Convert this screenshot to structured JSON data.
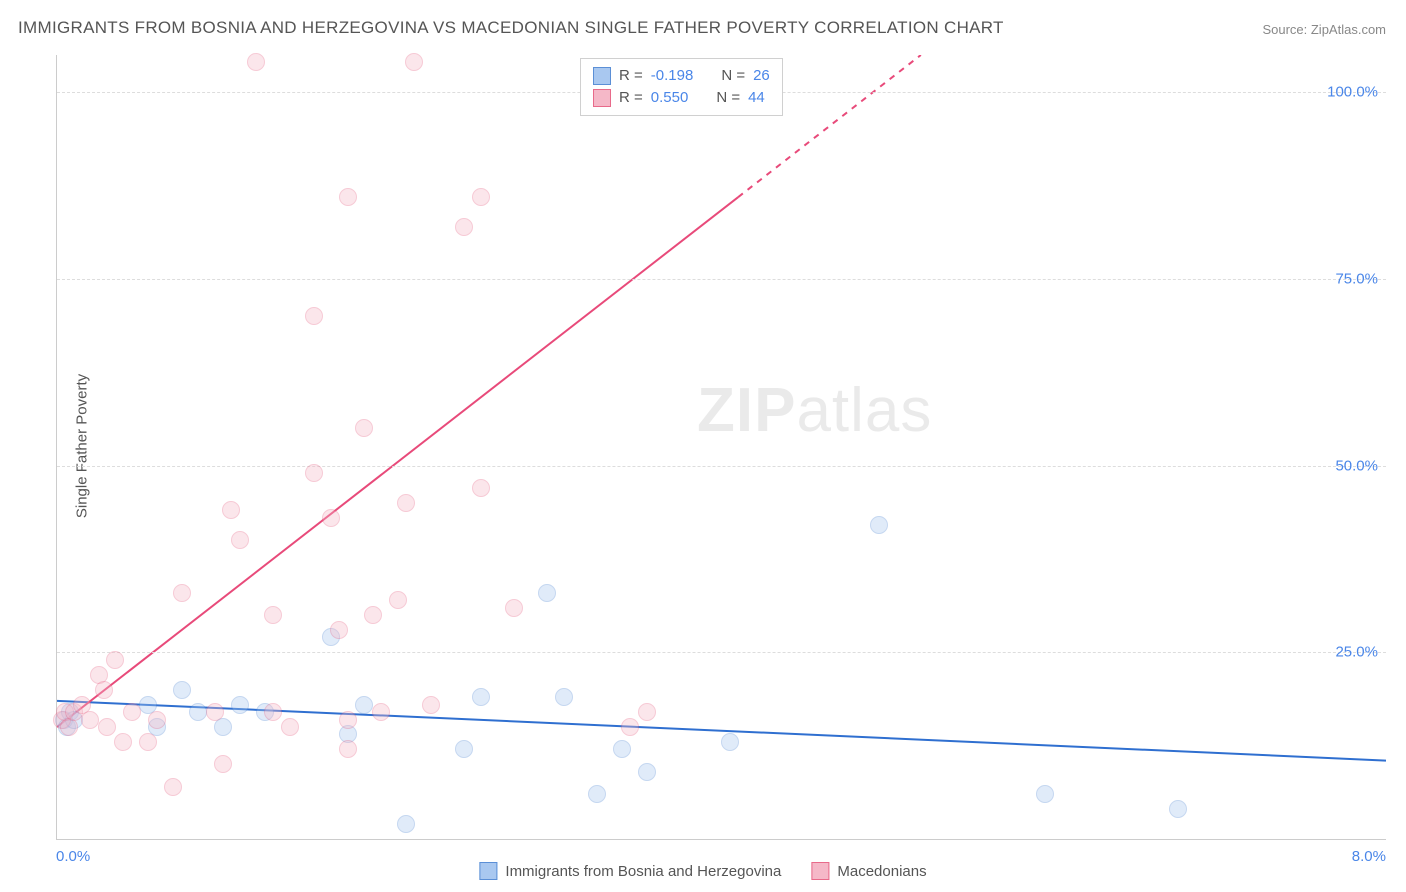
{
  "title": "IMMIGRANTS FROM BOSNIA AND HERZEGOVINA VS MACEDONIAN SINGLE FATHER POVERTY CORRELATION CHART",
  "source": "Source: ZipAtlas.com",
  "ylabel": "Single Father Poverty",
  "watermark": {
    "bold": "ZIP",
    "rest": "atlas"
  },
  "chart": {
    "type": "scatter",
    "xlim": [
      0,
      8
    ],
    "ylim": [
      0,
      105
    ],
    "xticks": [
      {
        "value": 0,
        "label": "0.0%"
      },
      {
        "value": 8,
        "label": "8.0%"
      }
    ],
    "yticks": [
      {
        "value": 25,
        "label": "25.0%"
      },
      {
        "value": 50,
        "label": "50.0%"
      },
      {
        "value": 75,
        "label": "75.0%"
      },
      {
        "value": 100,
        "label": "100.0%"
      }
    ],
    "grid_color": "#dddddd",
    "axis_color": "#cccccc",
    "background_color": "#ffffff",
    "marker_radius": 9,
    "marker_opacity": 0.35,
    "series": [
      {
        "name": "Immigrants from Bosnia and Herzegovina",
        "color_fill": "#a9c8f0",
        "color_stroke": "#5b8fd6",
        "R": "-0.198",
        "N": "26",
        "trend": {
          "x1": 0,
          "y1": 18.5,
          "x2": 8,
          "y2": 10.5,
          "color": "#2f6fd0",
          "width": 2,
          "dash_after_x": 8
        },
        "points": [
          {
            "x": 0.04,
            "y": 16
          },
          {
            "x": 0.06,
            "y": 15
          },
          {
            "x": 0.08,
            "y": 17
          },
          {
            "x": 0.1,
            "y": 16
          },
          {
            "x": 0.55,
            "y": 18
          },
          {
            "x": 0.6,
            "y": 15
          },
          {
            "x": 0.75,
            "y": 20
          },
          {
            "x": 0.85,
            "y": 17
          },
          {
            "x": 1.0,
            "y": 15
          },
          {
            "x": 1.1,
            "y": 18
          },
          {
            "x": 1.25,
            "y": 17
          },
          {
            "x": 1.65,
            "y": 27
          },
          {
            "x": 1.75,
            "y": 14
          },
          {
            "x": 1.85,
            "y": 18
          },
          {
            "x": 2.1,
            "y": 2
          },
          {
            "x": 2.45,
            "y": 12
          },
          {
            "x": 2.55,
            "y": 19
          },
          {
            "x": 2.95,
            "y": 33
          },
          {
            "x": 3.05,
            "y": 19
          },
          {
            "x": 3.25,
            "y": 6
          },
          {
            "x": 3.4,
            "y": 12
          },
          {
            "x": 3.55,
            "y": 9
          },
          {
            "x": 4.05,
            "y": 13
          },
          {
            "x": 4.95,
            "y": 42
          },
          {
            "x": 5.95,
            "y": 6
          },
          {
            "x": 6.75,
            "y": 4
          }
        ]
      },
      {
        "name": "Macedonians",
        "color_fill": "#f5b8c8",
        "color_stroke": "#e86a8a",
        "R": "0.550",
        "N": "44",
        "trend": {
          "x1": 0,
          "y1": 15,
          "x2": 5.2,
          "y2": 105,
          "color": "#e84a7a",
          "width": 2,
          "dash_after_x": 4.1
        },
        "points": [
          {
            "x": 0.03,
            "y": 16
          },
          {
            "x": 0.05,
            "y": 17
          },
          {
            "x": 0.07,
            "y": 15
          },
          {
            "x": 0.1,
            "y": 17
          },
          {
            "x": 0.15,
            "y": 18
          },
          {
            "x": 0.2,
            "y": 16
          },
          {
            "x": 0.25,
            "y": 22
          },
          {
            "x": 0.28,
            "y": 20
          },
          {
            "x": 0.3,
            "y": 15
          },
          {
            "x": 0.35,
            "y": 24
          },
          {
            "x": 0.4,
            "y": 13
          },
          {
            "x": 0.45,
            "y": 17
          },
          {
            "x": 0.55,
            "y": 13
          },
          {
            "x": 0.6,
            "y": 16
          },
          {
            "x": 0.7,
            "y": 7
          },
          {
            "x": 0.75,
            "y": 33
          },
          {
            "x": 0.95,
            "y": 17
          },
          {
            "x": 1.0,
            "y": 10
          },
          {
            "x": 1.05,
            "y": 44
          },
          {
            "x": 1.1,
            "y": 40
          },
          {
            "x": 1.2,
            "y": 104
          },
          {
            "x": 1.3,
            "y": 17
          },
          {
            "x": 1.3,
            "y": 30
          },
          {
            "x": 1.4,
            "y": 15
          },
          {
            "x": 1.55,
            "y": 70
          },
          {
            "x": 1.55,
            "y": 49
          },
          {
            "x": 1.65,
            "y": 43
          },
          {
            "x": 1.7,
            "y": 28
          },
          {
            "x": 1.75,
            "y": 16
          },
          {
            "x": 1.75,
            "y": 12
          },
          {
            "x": 1.85,
            "y": 55
          },
          {
            "x": 1.75,
            "y": 86
          },
          {
            "x": 1.9,
            "y": 30
          },
          {
            "x": 1.95,
            "y": 17
          },
          {
            "x": 2.05,
            "y": 32
          },
          {
            "x": 2.1,
            "y": 45
          },
          {
            "x": 2.15,
            "y": 104
          },
          {
            "x": 2.25,
            "y": 18
          },
          {
            "x": 2.45,
            "y": 82
          },
          {
            "x": 2.55,
            "y": 86
          },
          {
            "x": 2.55,
            "y": 47
          },
          {
            "x": 2.75,
            "y": 31
          },
          {
            "x": 3.45,
            "y": 15
          },
          {
            "x": 3.55,
            "y": 17
          }
        ]
      }
    ]
  },
  "legend_stats": {
    "R_label": "R =",
    "N_label": "N ="
  },
  "title_fontsize": 17,
  "tick_fontsize": 15,
  "tick_color": "#4a86e8",
  "title_color": "#555555"
}
